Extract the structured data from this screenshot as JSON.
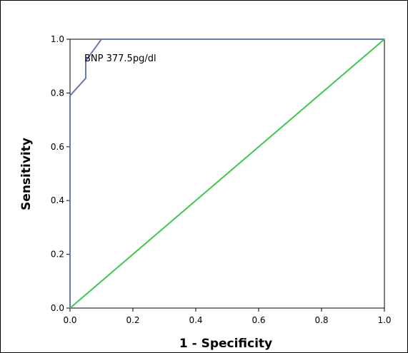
{
  "chart_data": {
    "type": "line",
    "title": "",
    "xlabel": "1 - Specificity",
    "ylabel": "Sensitivity",
    "xlim": [
      0.0,
      1.0
    ],
    "ylim": [
      0.0,
      1.0
    ],
    "xticks": [
      "0.0",
      "0.2",
      "0.4",
      "0.6",
      "0.8",
      "1.0"
    ],
    "yticks": [
      "0.0",
      "0.2",
      "0.4",
      "0.6",
      "0.8",
      "1.0"
    ],
    "grid": false,
    "legend": "none",
    "annotation": "BNP 377.5pg/dl",
    "series": [
      {
        "color": "#6b77b8",
        "x": [
          0.0,
          0.0,
          0.05,
          0.05,
          0.1,
          1.0
        ],
        "y": [
          0.0,
          0.79,
          0.855,
          0.92,
          1.0,
          1.0
        ]
      },
      {
        "color": "#3cc84a",
        "x": [
          0.0,
          1.0
        ],
        "y": [
          0.0,
          1.0
        ]
      }
    ]
  }
}
